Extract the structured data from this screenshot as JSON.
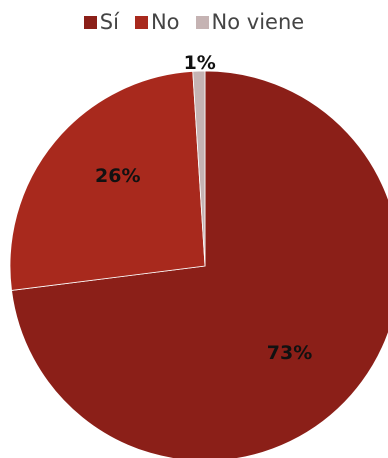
{
  "chart_data": {
    "type": "pie",
    "categories": [
      "Sí",
      "No",
      "No viene"
    ],
    "values": [
      73,
      26,
      1
    ],
    "labels": [
      "73%",
      "26%",
      "1%"
    ],
    "colors": [
      "#8b1f18",
      "#a8291d",
      "#c5b3b3"
    ],
    "legend": "top"
  }
}
